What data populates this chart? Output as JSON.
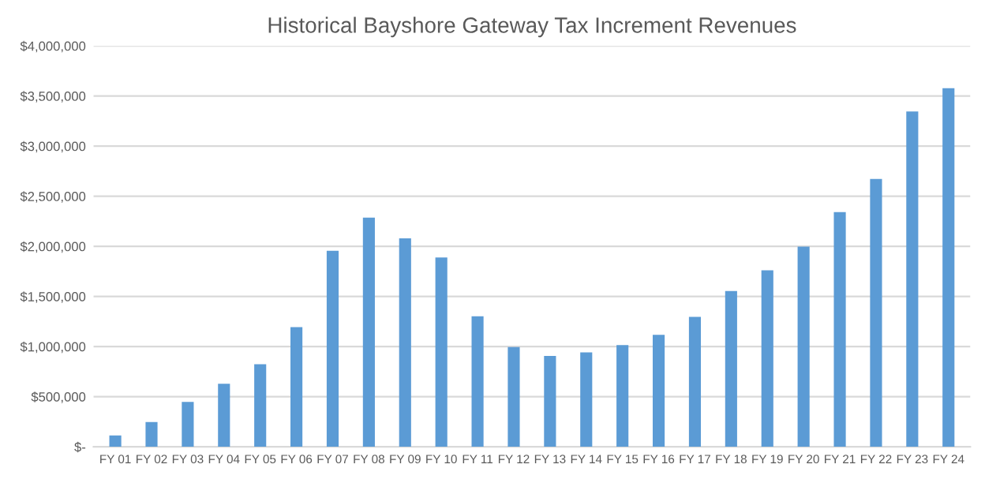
{
  "chart_data": {
    "type": "bar",
    "title": "Historical Bayshore Gateway Tax Increment Revenues",
    "categories": [
      "FY 01",
      "FY 02",
      "FY 03",
      "FY 04",
      "FY 05",
      "FY 06",
      "FY 07",
      "FY 08",
      "FY 09",
      "FY 10",
      "FY 11",
      "FY 12",
      "FY 13",
      "FY 14",
      "FY 15",
      "FY 16",
      "FY 17",
      "FY 18",
      "FY 19",
      "FY 20",
      "FY 21",
      "FY 22",
      "FY 23",
      "FY 24"
    ],
    "series": [
      {
        "color": "#5b9bd5",
        "values": [
          113000,
          247000,
          448000,
          628000,
          824000,
          1194000,
          1956000,
          2286000,
          2080000,
          1889000,
          1302000,
          994000,
          906000,
          942000,
          1014000,
          1117000,
          1297000,
          1555000,
          1761000,
          1997000,
          2342000,
          2672000,
          3346000,
          3578000
        ]
      }
    ],
    "ylim": [
      0,
      4000000
    ],
    "yticks": [
      {
        "value": 0,
        "label": "$-"
      },
      {
        "value": 500000,
        "label": "$500,000"
      },
      {
        "value": 1000000,
        "label": "$1,000,000"
      },
      {
        "value": 1500000,
        "label": "$1,500,000"
      },
      {
        "value": 2000000,
        "label": "$2,000,000"
      },
      {
        "value": 2500000,
        "label": "$2,500,000"
      },
      {
        "value": 3000000,
        "label": "$3,000,000"
      },
      {
        "value": 3500000,
        "label": "$3,500,000"
      },
      {
        "value": 4000000,
        "label": "$4,000,000"
      }
    ],
    "grid": "y",
    "legend": false
  }
}
